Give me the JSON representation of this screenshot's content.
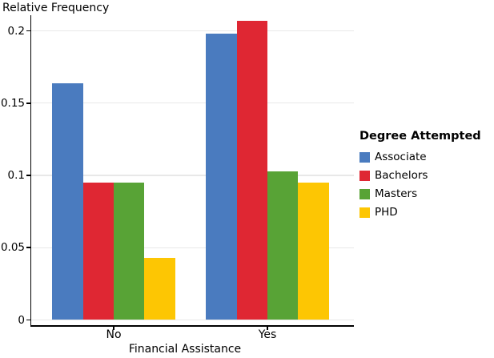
{
  "chart_data": {
    "type": "bar",
    "title": "Relative Frequency",
    "ylabel": "Relative Frequency",
    "xlabel": "Financial Assistance",
    "categories": [
      "No",
      "Yes"
    ],
    "series": [
      {
        "name": "Associate",
        "color": "#4a7bbf",
        "values": [
          0.164,
          0.198
        ]
      },
      {
        "name": "Bachelors",
        "color": "#df2733",
        "values": [
          0.095,
          0.207
        ]
      },
      {
        "name": "Masters",
        "color": "#58a336",
        "values": [
          0.095,
          0.103
        ]
      },
      {
        "name": "PHD",
        "color": "#fdc603",
        "values": [
          0.043,
          0.095
        ]
      }
    ],
    "ylim": [
      0,
      0.21
    ],
    "yticks": [
      0,
      0.05,
      0.1,
      0.15,
      0.2
    ],
    "ytick_labels": [
      "0",
      "0.05",
      "0.1",
      "0.15",
      "0.2"
    ],
    "legend_title": "Degree Attempted",
    "legend_position": "right",
    "grid": true,
    "background": "#ffffff",
    "gridline_color": "#e8e8e8",
    "axis_color": "#000000"
  }
}
